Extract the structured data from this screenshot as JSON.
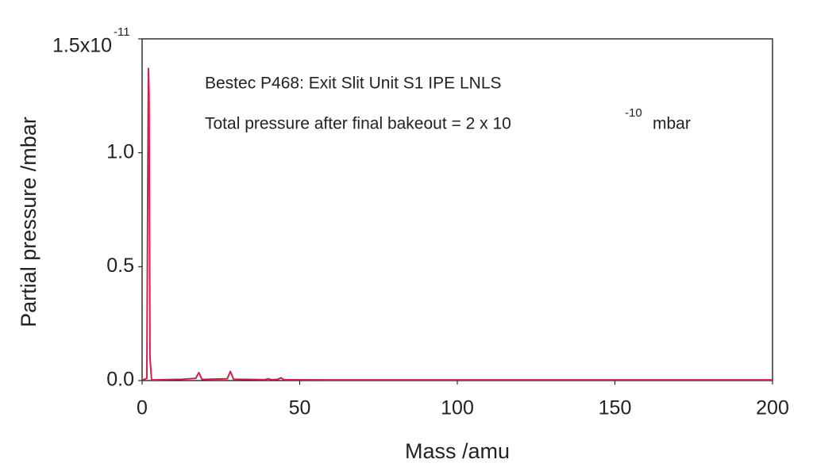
{
  "chart_data": {
    "type": "line",
    "annotations": [
      "Bestec P468: Exit Slit Unit S1 IPE LNLS",
      "Total pressure after final bakeout = 2 x 10",
      "-10",
      "mbar"
    ],
    "x_label": "Mass /amu",
    "y_label": "Partial pressure /mbar",
    "y_exponent": "-11",
    "x": [
      0,
      1.5,
      1.8,
      2.0,
      2.2,
      2.5,
      3,
      12,
      17,
      18,
      19,
      27,
      28,
      29,
      39,
      40,
      41,
      43,
      44,
      45,
      60,
      200
    ],
    "series": [
      {
        "color": "#d81e4a",
        "values": [
          0.002,
          0.01,
          0.9,
          1.37,
          1.25,
          0.1,
          0.003,
          0.005,
          0.01,
          0.035,
          0.005,
          0.008,
          0.04,
          0.006,
          0.004,
          0.008,
          0.004,
          0.005,
          0.012,
          0.004,
          0.003,
          0.003
        ]
      }
    ],
    "xlim": [
      0,
      200
    ],
    "ylim": [
      0,
      1.5
    ],
    "xticks": [
      0,
      50,
      100,
      150,
      200
    ],
    "yticks": [
      {
        "value": 0,
        "label": "0.0"
      },
      {
        "value": 0.5,
        "label": "0.5"
      },
      {
        "value": 1,
        "label": "1.0"
      },
      {
        "value": 1.5,
        "label": "1.5x10"
      }
    ]
  }
}
